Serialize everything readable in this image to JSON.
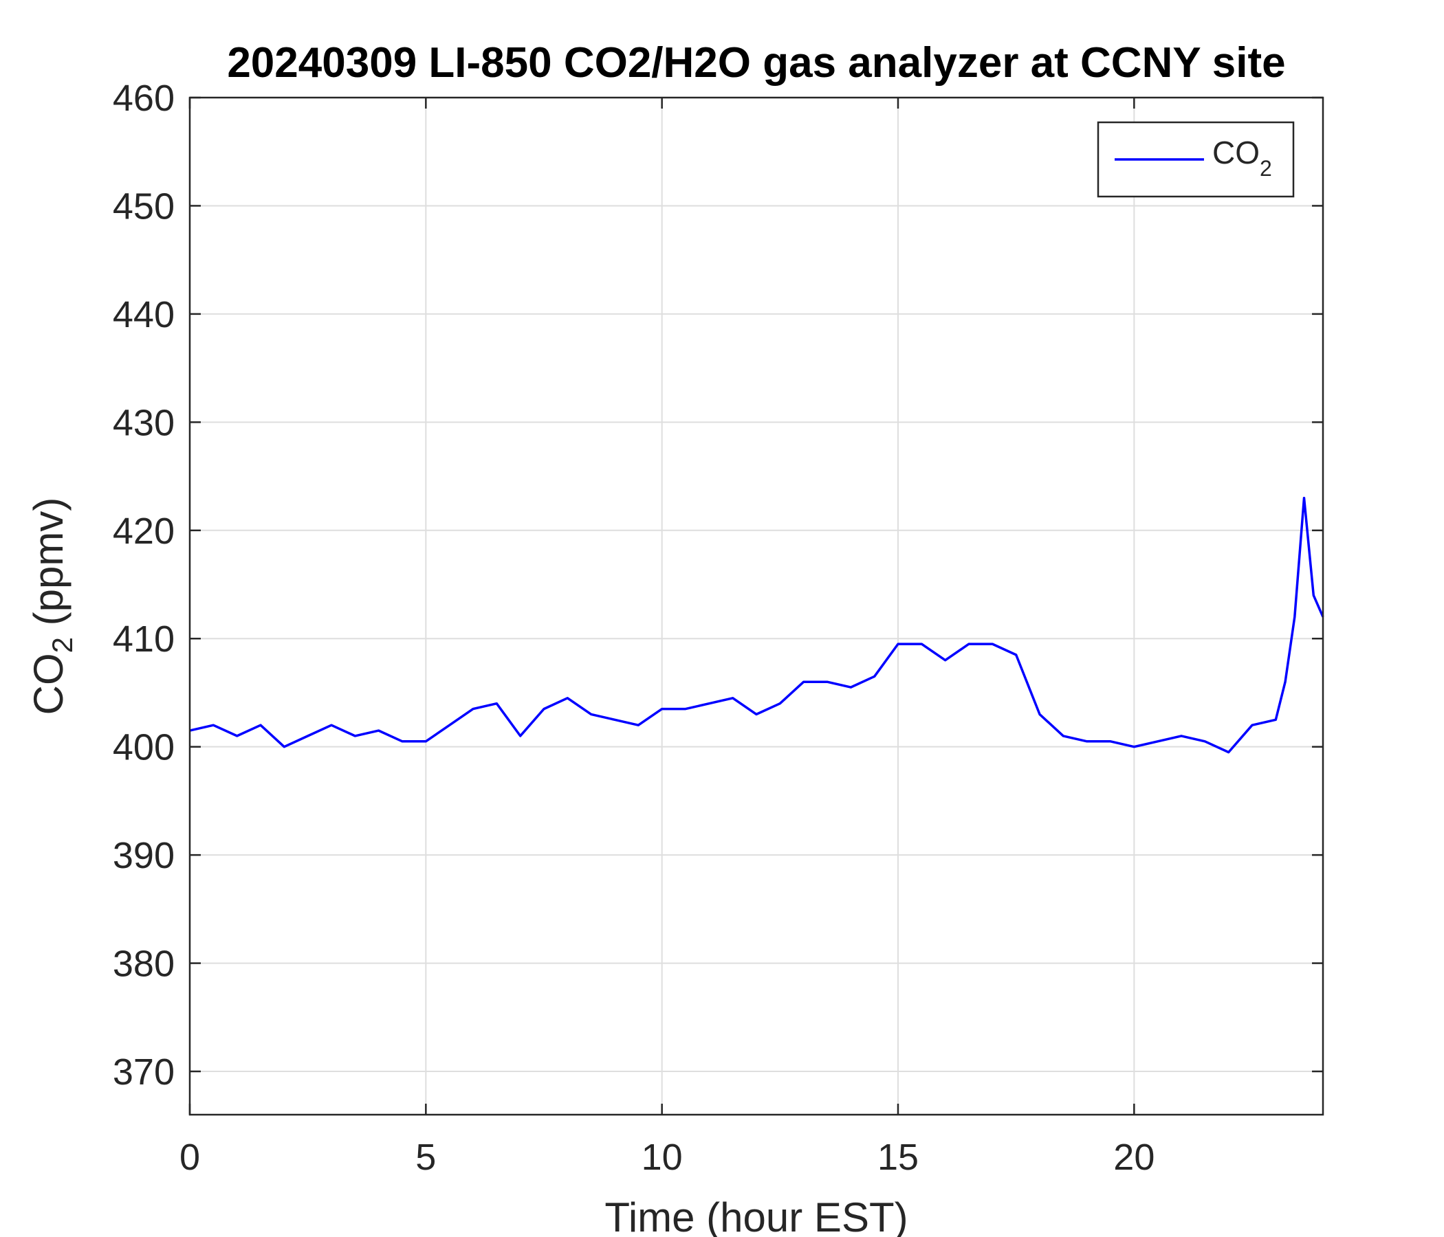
{
  "chart_data": {
    "type": "line",
    "title": "20240309 LI-850 CO2/H2O gas analyzer at CCNY site",
    "xlabel": "Time (hour EST)",
    "ylabel": {
      "base": "CO",
      "sub": "2",
      "rest": " (ppmv)"
    },
    "xlim": [
      0,
      24
    ],
    "ylim": [
      366,
      460
    ],
    "xticks": [
      0,
      5,
      10,
      15,
      20
    ],
    "yticks": [
      370,
      380,
      390,
      400,
      410,
      420,
      430,
      440,
      450,
      460
    ],
    "grid": true,
    "legend": {
      "position": "top-right"
    },
    "series": [
      {
        "name": {
          "base": "CO",
          "sub": "2"
        },
        "color": "#0000ff",
        "x": [
          0,
          0.5,
          1,
          1.5,
          2,
          2.5,
          3,
          3.5,
          4,
          4.5,
          5,
          5.5,
          6,
          6.5,
          7,
          7.5,
          8,
          8.5,
          9,
          9.5,
          10,
          10.5,
          11,
          11.5,
          12,
          12.5,
          13,
          13.5,
          14,
          14.5,
          15,
          15.5,
          16,
          16.5,
          17,
          17.5,
          18,
          18.5,
          19,
          19.5,
          20,
          20.5,
          21,
          21.5,
          22,
          22.5,
          23,
          23.2,
          23.4,
          23.6,
          23.8,
          24
        ],
        "values": [
          401.5,
          402,
          401,
          402,
          400,
          401,
          402,
          401,
          401.5,
          400.5,
          400.5,
          402,
          403.5,
          404,
          401,
          403.5,
          404.5,
          403,
          402.5,
          402,
          403.5,
          403.5,
          404,
          404.5,
          403,
          404,
          406,
          406,
          405.5,
          406.5,
          409.5,
          409.5,
          408,
          409.5,
          409.5,
          408.5,
          403,
          401,
          400.5,
          400.5,
          400,
          400.5,
          401,
          400.5,
          399.5,
          402,
          402.5,
          406,
          412,
          423,
          414,
          412
        ]
      }
    ]
  }
}
